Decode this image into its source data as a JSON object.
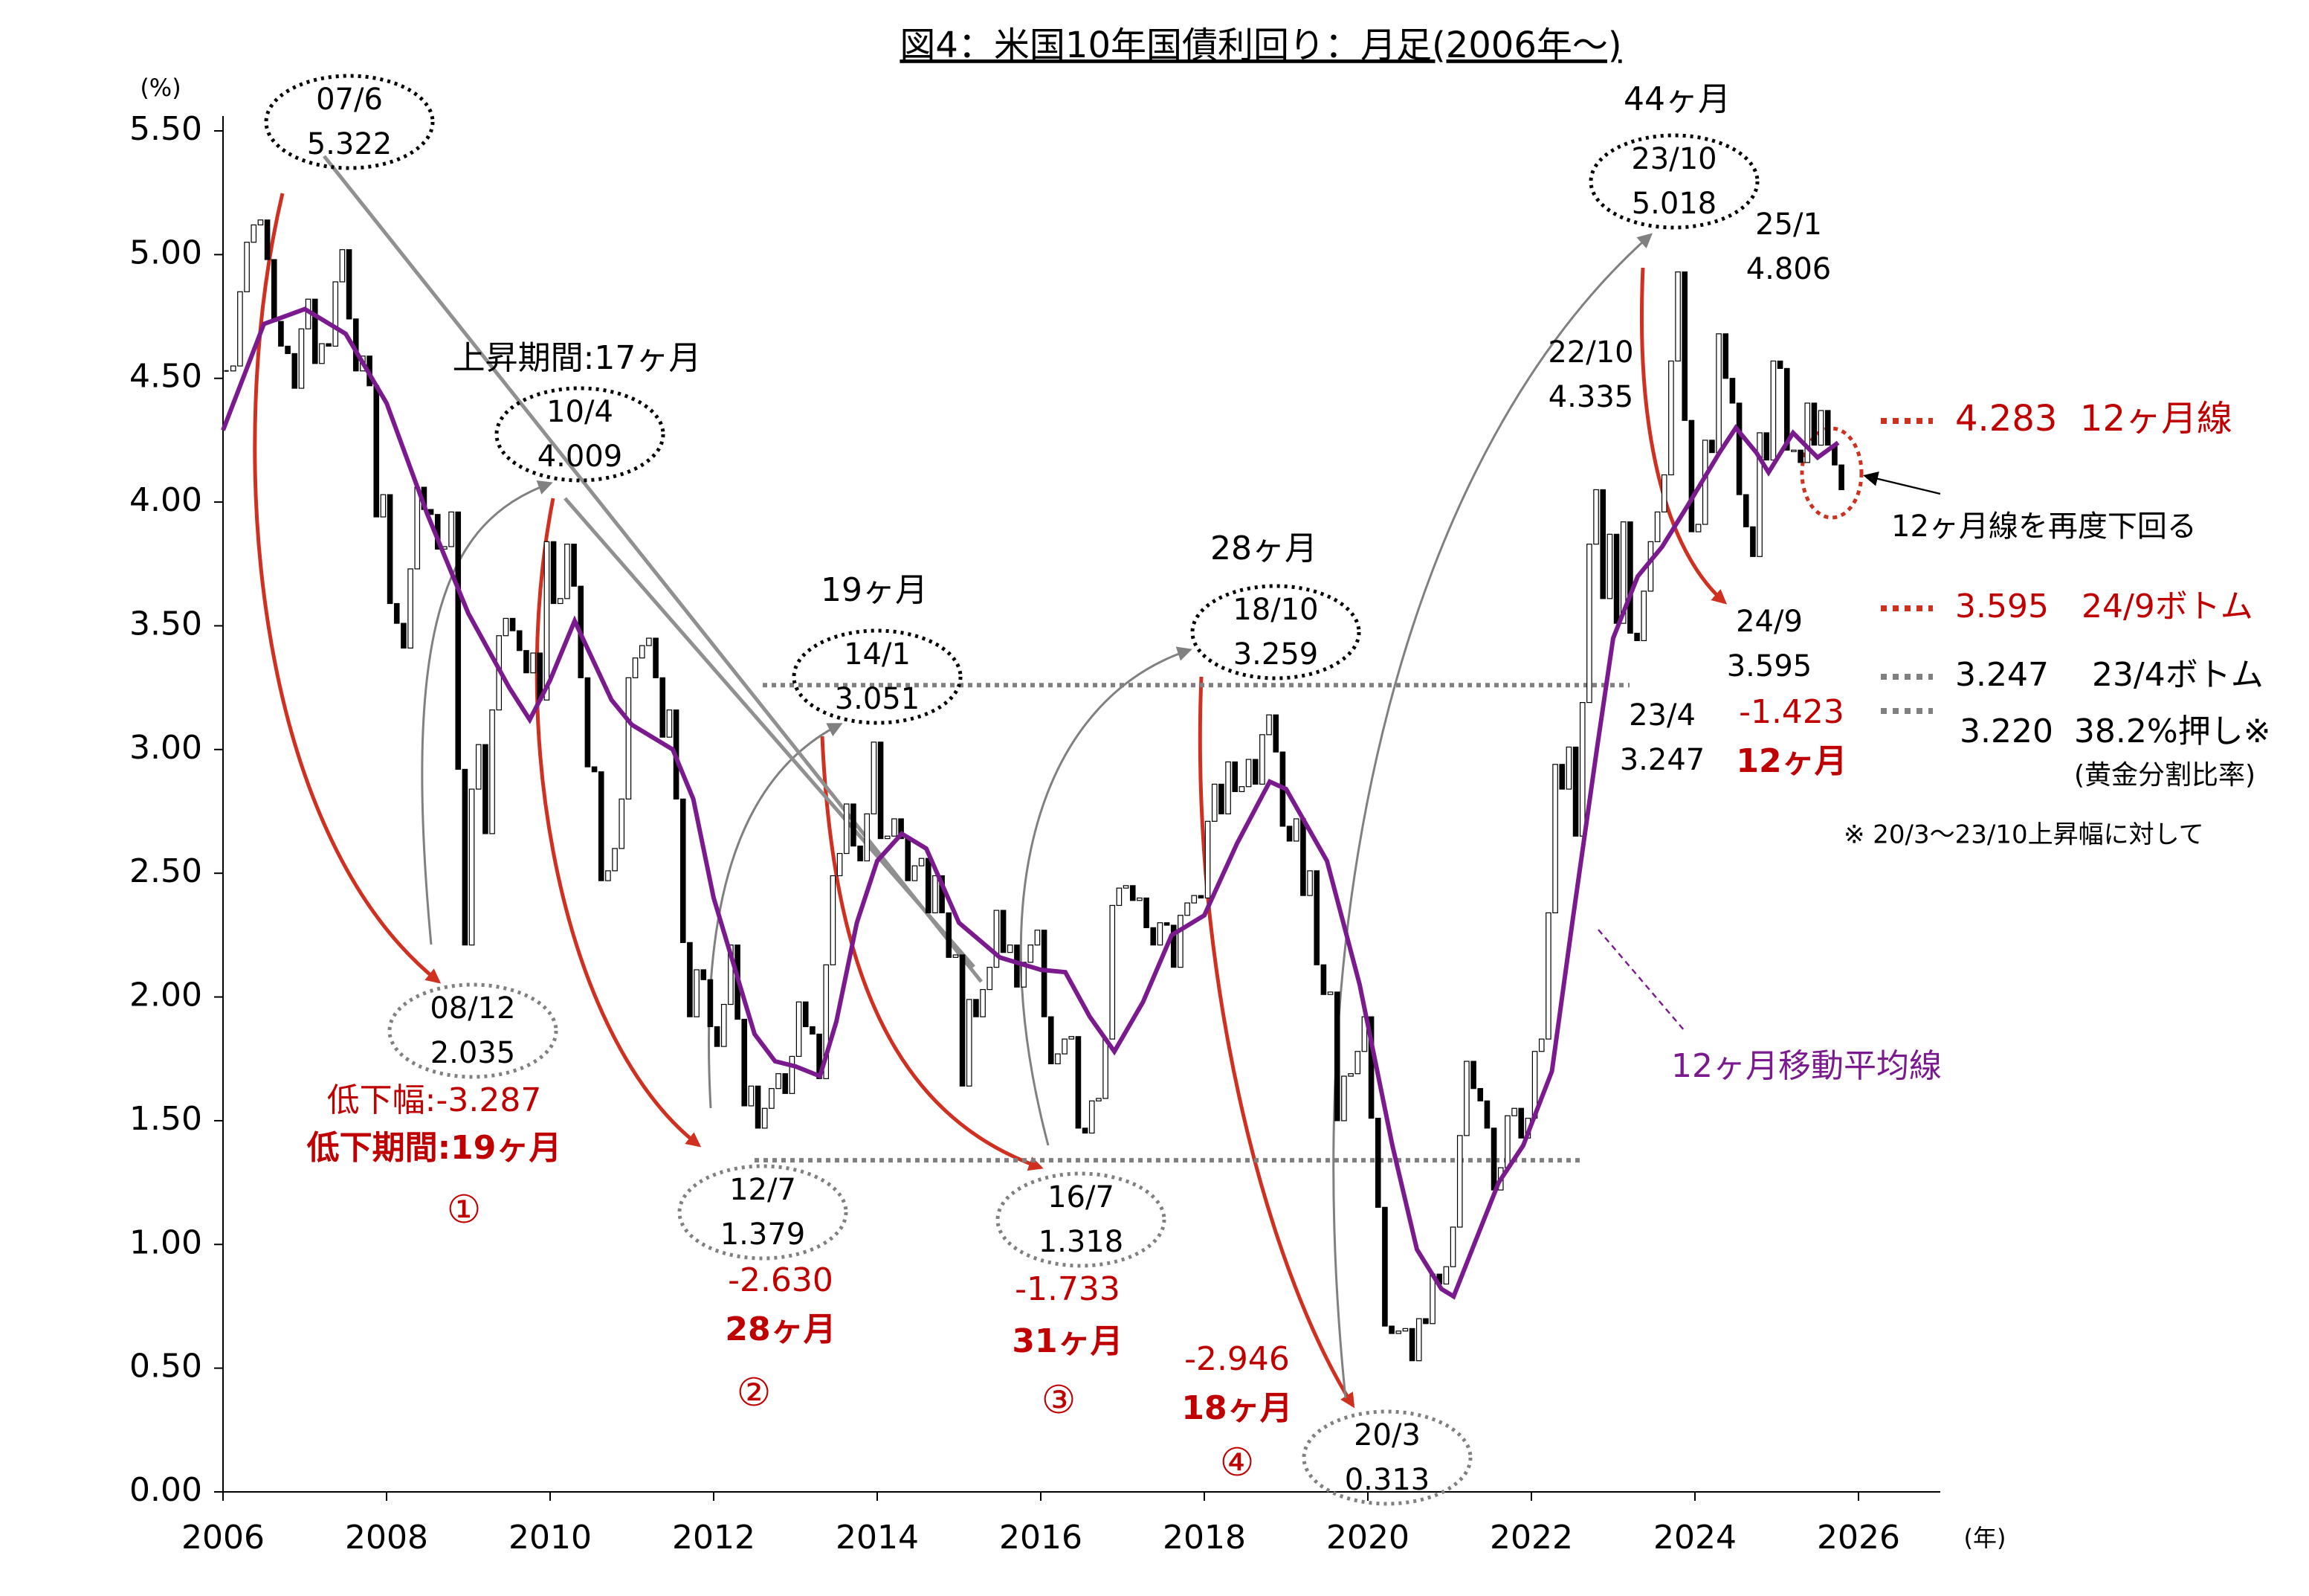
{
  "chart_data": {
    "type": "candlestick",
    "title": "図4：米国10年国債利回り：月足(2006年〜)",
    "y_unit": "(%)",
    "x_unit": "(年)",
    "xlim": [
      2006,
      2027
    ],
    "xticks": [
      2006,
      2008,
      2010,
      2012,
      2014,
      2016,
      2018,
      2020,
      2022,
      2024,
      2026
    ],
    "ylim": [
      0,
      5.5
    ],
    "yticks": [
      {
        "value": 0,
        "label": "0.00"
      },
      {
        "value": 0.5,
        "label": "0.50"
      },
      {
        "value": 1,
        "label": "1.00"
      },
      {
        "value": 1.5,
        "label": "1.50"
      },
      {
        "value": 2,
        "label": "2.00"
      },
      {
        "value": 2.5,
        "label": "2.50"
      },
      {
        "value": 3,
        "label": "3.00"
      },
      {
        "value": 3.5,
        "label": "3.50"
      },
      {
        "value": 4,
        "label": "4.00"
      },
      {
        "value": 4.5,
        "label": "4.50"
      },
      {
        "value": 5,
        "label": "5.00"
      },
      {
        "value": 5.5,
        "label": "5.50"
      }
    ],
    "close": [
      4.53,
      4.55,
      4.85,
      5.05,
      5.12,
      5.14,
      4.98,
      4.73,
      4.63,
      4.6,
      4.46,
      4.7,
      4.82,
      4.56,
      4.64,
      4.63,
      4.89,
      5.02,
      4.74,
      4.53,
      4.59,
      4.47,
      3.94,
      4.03,
      3.59,
      3.51,
      3.41,
      3.73,
      4.06,
      3.97,
      3.95,
      3.81,
      3.82,
      3.96,
      2.92,
      2.21,
      2.84,
      3.02,
      2.66,
      3.16,
      3.46,
      3.53,
      3.48,
      3.4,
      3.31,
      3.39,
      3.2,
      3.84,
      3.59,
      3.61,
      3.83,
      3.66,
      3.29,
      2.93,
      2.91,
      2.47,
      2.51,
      2.6,
      2.8,
      3.29,
      3.37,
      3.42,
      3.45,
      3.29,
      3.05,
      3.16,
      2.8,
      2.22,
      1.92,
      2.11,
      2.07,
      1.88,
      1.8,
      1.97,
      2.21,
      1.91,
      1.56,
      1.64,
      1.47,
      1.55,
      1.63,
      1.69,
      1.61,
      1.76,
      1.98,
      1.88,
      1.85,
      1.67,
      2.13,
      2.49,
      2.58,
      2.78,
      2.61,
      2.55,
      2.74,
      3.03,
      2.64,
      2.65,
      2.72,
      2.64,
      2.47,
      2.53,
      2.56,
      2.34,
      2.49,
      2.34,
      2.16,
      2.17,
      1.64,
      1.99,
      1.92,
      2.03,
      2.12,
      2.35,
      2.18,
      2.21,
      2.04,
      2.14,
      2.21,
      2.27,
      1.92,
      1.73,
      1.77,
      1.83,
      1.84,
      1.47,
      1.45,
      1.58,
      1.59,
      1.83,
      2.37,
      2.44,
      2.45,
      2.39,
      2.4,
      2.28,
      2.21,
      2.3,
      2.29,
      2.12,
      2.33,
      2.38,
      2.41,
      2.4,
      2.71,
      2.86,
      2.74,
      2.95,
      2.83,
      2.85,
      2.96,
      2.86,
      3.06,
      3.14,
      2.99,
      2.69,
      2.63,
      2.72,
      2.41,
      2.51,
      2.13,
      2.01,
      2.02,
      1.5,
      1.68,
      1.69,
      1.78,
      1.92,
      1.51,
      1.15,
      0.67,
      0.64,
      0.65,
      0.66,
      0.53,
      0.7,
      0.68,
      0.88,
      0.84,
      0.91,
      1.07,
      1.44,
      1.74,
      1.63,
      1.58,
      1.47,
      1.22,
      1.31,
      1.52,
      1.55,
      1.43,
      1.51,
      1.78,
      1.83,
      2.34,
      2.94,
      2.84,
      3.01,
      2.65,
      3.19,
      3.83,
      4.05,
      3.61,
      3.87,
      3.51,
      3.92,
      3.47,
      3.44,
      3.64,
      3.84,
      3.96,
      4.11,
      4.57,
      4.93,
      4.33,
      3.88,
      3.91,
      4.25,
      4.2,
      4.68,
      4.5,
      4.4,
      4.03,
      3.9,
      3.78,
      4.28,
      4.17,
      4.57,
      4.54,
      4.21,
      4.21,
      4.16,
      4.4,
      4.23,
      4.37,
      4.23,
      4.15,
      4.05
    ],
    "up_color": "#ffffff",
    "down_color": "#000000",
    "ma": {
      "name": "12ヶ月移動平均線",
      "color": "#7b1a8e",
      "x": [
        2006,
        2006.5,
        2007,
        2007.5,
        2008,
        2008.5,
        2009,
        2009.5,
        2009.75,
        2010,
        2010.3,
        2010.75,
        2011,
        2011.5,
        2011.75,
        2012,
        2012.5,
        2012.75,
        2013,
        2013.3,
        2013.5,
        2013.75,
        2014,
        2014.3,
        2014.6,
        2015,
        2015.5,
        2016,
        2016.3,
        2016.6,
        2016.9,
        2017.25,
        2017.6,
        2018,
        2018.4,
        2018.8,
        2019,
        2019.5,
        2019.9,
        2020.3,
        2020.6,
        2020.9,
        2021.05,
        2021.3,
        2021.6,
        2021.9,
        2022.25,
        2022.5,
        2022.8,
        2023,
        2023.3,
        2023.6,
        2023.9,
        2024.3,
        2024.5,
        2024.75,
        2024.9,
        2025.2,
        2025.5,
        2025.75
      ],
      "values": [
        4.29,
        4.72,
        4.78,
        4.68,
        4.4,
        3.95,
        3.55,
        3.25,
        3.12,
        3.28,
        3.52,
        3.2,
        3.1,
        3,
        2.8,
        2.4,
        1.85,
        1.74,
        1.72,
        1.68,
        1.9,
        2.3,
        2.55,
        2.66,
        2.6,
        2.3,
        2.16,
        2.11,
        2.1,
        1.92,
        1.78,
        1.98,
        2.25,
        2.33,
        2.62,
        2.87,
        2.84,
        2.55,
        2.05,
        1.4,
        0.98,
        0.82,
        0.79,
        1,
        1.25,
        1.4,
        1.7,
        2.3,
        3,
        3.45,
        3.7,
        3.82,
        3.98,
        4.2,
        4.3,
        4.2,
        4.12,
        4.28,
        4.18,
        4.24
      ]
    },
    "reference_lines": [
      3.26,
      1.34
    ],
    "callouts": [
      {
        "date": "07/6",
        "value": 5.322
      },
      {
        "date": "10/4",
        "value": 4.009
      },
      {
        "date": "08/12",
        "value": 2.035
      },
      {
        "date": "12/7",
        "value": 1.379
      },
      {
        "date": "14/1",
        "value": 3.051
      },
      {
        "date": "16/7",
        "value": 1.318
      },
      {
        "date": "18/10",
        "value": 3.259
      },
      {
        "date": "20/3",
        "value": 0.313
      },
      {
        "date": "23/10",
        "value": 5.018
      },
      {
        "date": "25/1",
        "value": 4.806
      },
      {
        "date": "22/10",
        "value": 4.335
      },
      {
        "date": "24/9",
        "value": 3.595
      },
      {
        "date": "23/4",
        "value": 3.247
      }
    ],
    "period_labels": [
      "上昇期間:17ヶ月",
      "19ヶ月",
      "28ヶ月",
      "44ヶ月"
    ],
    "declines": [
      {
        "change": "低下幅:-3.287",
        "period": "低下期間:19ヶ月",
        "number": "①"
      },
      {
        "change": "-2.630",
        "period": "28ヶ月",
        "number": "②"
      },
      {
        "change": "-1.733",
        "period": "31ヶ月",
        "number": "③"
      },
      {
        "change": "-2.946",
        "period": "18ヶ月",
        "number": "④"
      },
      {
        "change": "-1.423",
        "period": "12ヶ月"
      }
    ],
    "right_notes": [
      "4.283  12ヶ月線",
      "3.595　24/9ボトム",
      "3.247　 23/4ボトム",
      "3.220  38.2%押し※",
      "(黄金分割比率)",
      "※ 20/3〜23/10上昇幅に対して",
      "12ヶ月線を再度下回る"
    ]
  }
}
